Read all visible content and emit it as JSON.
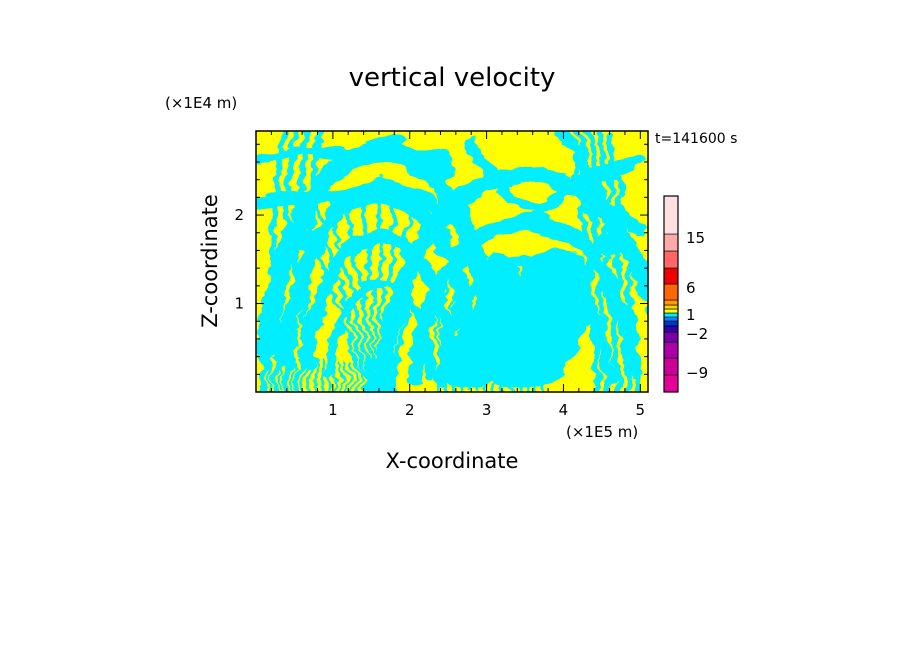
{
  "chart_data": {
    "type": "heatmap",
    "title": "vertical velocity",
    "xlabel": "X-coordinate",
    "ylabel": "Z-coordinate",
    "x_unit": "(×1E5 m)",
    "y_unit": "(×1E4 m)",
    "time_label": "t=141600 s",
    "xlim": [
      0,
      5.1
    ],
    "ylim": [
      0,
      2.95
    ],
    "x_ticks": [
      1,
      2,
      3,
      4,
      5
    ],
    "y_ticks": [
      1,
      2
    ],
    "colors": {
      "positive": "#ffff00",
      "negative": "#00eeff"
    },
    "colorbar": {
      "levels": [
        {
          "color": "#e60099"
        },
        {
          "color": "#cc0099"
        },
        {
          "color": "#aa00aa"
        },
        {
          "color": "#7700aa"
        },
        {
          "color": "#3300aa"
        },
        {
          "color": "#0033cc"
        },
        {
          "color": "#0088ff"
        },
        {
          "color": "#00eeff"
        },
        {
          "color": "#ffff00"
        },
        {
          "color": "#ffcc00"
        },
        {
          "color": "#ff9900"
        },
        {
          "color": "#ff6600"
        },
        {
          "color": "#ee0000"
        },
        {
          "color": "#ff6666"
        },
        {
          "color": "#ffaaaa"
        },
        {
          "color": "#ffe0e0"
        }
      ],
      "labels": [
        {
          "text": "15",
          "value": 15
        },
        {
          "text": "6",
          "value": 6
        },
        {
          "text": "1",
          "value": 1
        },
        {
          "text": "−2",
          "value": -2
        },
        {
          "text": "−9",
          "value": -9
        }
      ]
    }
  }
}
